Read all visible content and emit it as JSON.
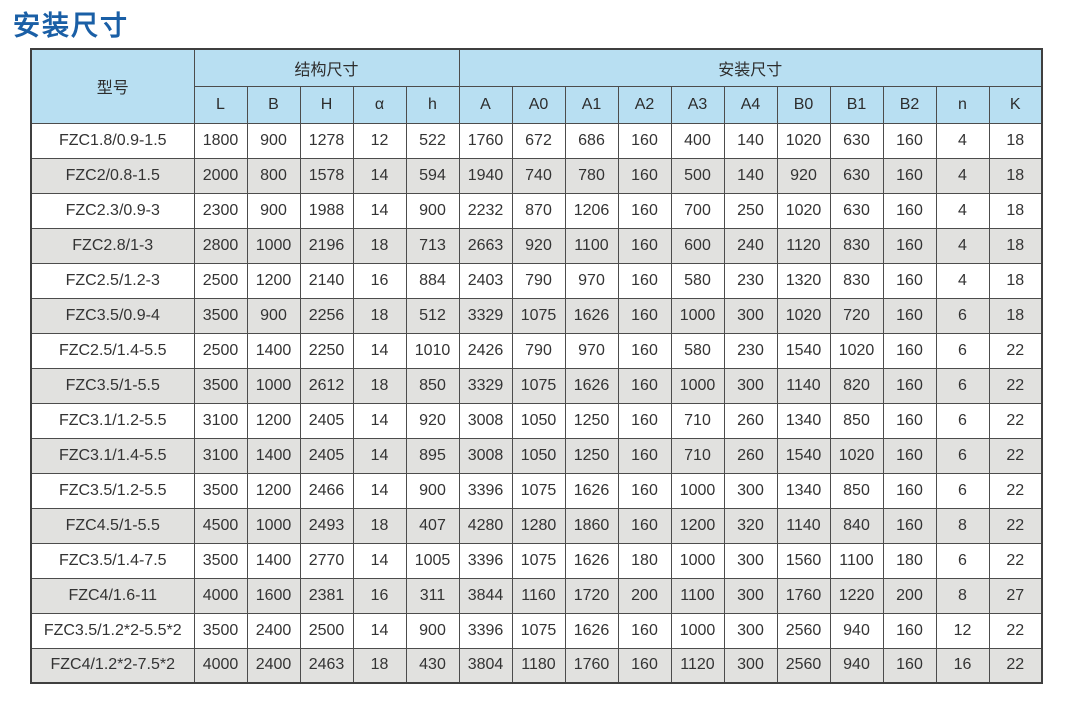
{
  "page": {
    "title": "安装尺寸"
  },
  "colors": {
    "title": "#1A5FA6",
    "header_bg": "#B8DFF2",
    "row_alt_bg": "#E1E1DF",
    "border": "#4C4C4C"
  },
  "table": {
    "header": {
      "model_label": "型号",
      "structure_group_label": "结构尺寸",
      "install_group_label": "安装尺寸",
      "structure_cols": [
        "L",
        "B",
        "H",
        "α",
        "h"
      ],
      "install_cols": [
        "A",
        "A0",
        "A1",
        "A2",
        "A3",
        "A4",
        "B0",
        "B1",
        "B2",
        "n",
        "K"
      ]
    },
    "rows": [
      {
        "model": "FZC1.8/0.9-1.5",
        "values": [
          1800,
          900,
          1278,
          12,
          522,
          1760,
          672,
          686,
          160,
          400,
          140,
          1020,
          630,
          160,
          4,
          18
        ]
      },
      {
        "model": "FZC2/0.8-1.5",
        "values": [
          2000,
          800,
          1578,
          14,
          594,
          1940,
          740,
          780,
          160,
          500,
          140,
          920,
          630,
          160,
          4,
          18
        ]
      },
      {
        "model": "FZC2.3/0.9-3",
        "values": [
          2300,
          900,
          1988,
          14,
          900,
          2232,
          870,
          1206,
          160,
          700,
          250,
          1020,
          630,
          160,
          4,
          18
        ]
      },
      {
        "model": "FZC2.8/1-3",
        "values": [
          2800,
          1000,
          2196,
          18,
          713,
          2663,
          920,
          1100,
          160,
          600,
          240,
          1120,
          830,
          160,
          4,
          18
        ]
      },
      {
        "model": "FZC2.5/1.2-3",
        "values": [
          2500,
          1200,
          2140,
          16,
          884,
          2403,
          790,
          970,
          160,
          580,
          230,
          1320,
          830,
          160,
          4,
          18
        ]
      },
      {
        "model": "FZC3.5/0.9-4",
        "values": [
          3500,
          900,
          2256,
          18,
          512,
          3329,
          1075,
          1626,
          160,
          1000,
          300,
          1020,
          720,
          160,
          6,
          18
        ]
      },
      {
        "model": "FZC2.5/1.4-5.5",
        "values": [
          2500,
          1400,
          2250,
          14,
          1010,
          2426,
          790,
          970,
          160,
          580,
          230,
          1540,
          1020,
          160,
          6,
          22
        ]
      },
      {
        "model": "FZC3.5/1-5.5",
        "values": [
          3500,
          1000,
          2612,
          18,
          850,
          3329,
          1075,
          1626,
          160,
          1000,
          300,
          1140,
          820,
          160,
          6,
          22
        ]
      },
      {
        "model": "FZC3.1/1.2-5.5",
        "values": [
          3100,
          1200,
          2405,
          14,
          920,
          3008,
          1050,
          1250,
          160,
          710,
          260,
          1340,
          850,
          160,
          6,
          22
        ]
      },
      {
        "model": "FZC3.1/1.4-5.5",
        "values": [
          3100,
          1400,
          2405,
          14,
          895,
          3008,
          1050,
          1250,
          160,
          710,
          260,
          1540,
          1020,
          160,
          6,
          22
        ]
      },
      {
        "model": "FZC3.5/1.2-5.5",
        "values": [
          3500,
          1200,
          2466,
          14,
          900,
          3396,
          1075,
          1626,
          160,
          1000,
          300,
          1340,
          850,
          160,
          6,
          22
        ]
      },
      {
        "model": "FZC4.5/1-5.5",
        "values": [
          4500,
          1000,
          2493,
          18,
          407,
          4280,
          1280,
          1860,
          160,
          1200,
          320,
          1140,
          840,
          160,
          8,
          22
        ]
      },
      {
        "model": "FZC3.5/1.4-7.5",
        "values": [
          3500,
          1400,
          2770,
          14,
          1005,
          3396,
          1075,
          1626,
          180,
          1000,
          300,
          1560,
          1100,
          180,
          6,
          22
        ]
      },
      {
        "model": "FZC4/1.6-11",
        "values": [
          4000,
          1600,
          2381,
          16,
          311,
          3844,
          1160,
          1720,
          200,
          1100,
          300,
          1760,
          1220,
          200,
          8,
          27
        ]
      },
      {
        "model": "FZC3.5/1.2*2-5.5*2",
        "values": [
          3500,
          2400,
          2500,
          14,
          900,
          3396,
          1075,
          1626,
          160,
          1000,
          300,
          2560,
          940,
          160,
          12,
          22
        ]
      },
      {
        "model": "FZC4/1.2*2-7.5*2",
        "values": [
          4000,
          2400,
          2463,
          18,
          430,
          3804,
          1180,
          1760,
          160,
          1120,
          300,
          2560,
          940,
          160,
          16,
          22
        ]
      }
    ]
  }
}
